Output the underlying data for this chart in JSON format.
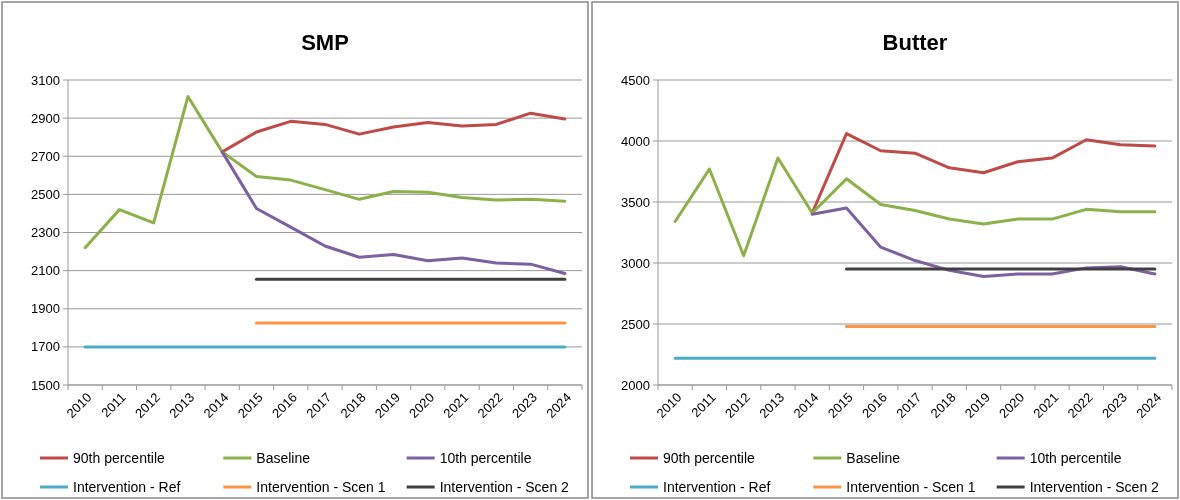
{
  "chart_data": [
    {
      "type": "line",
      "title": "SMP",
      "categories": [
        "2010",
        "2011",
        "2012",
        "2013",
        "2014",
        "2015",
        "2016",
        "2017",
        "2018",
        "2019",
        "2020",
        "2021",
        "2022",
        "2023",
        "2024"
      ],
      "ylim": [
        1500,
        3100
      ],
      "yticks": [
        1500,
        1700,
        1900,
        2100,
        2300,
        2500,
        2700,
        2900,
        3100
      ],
      "grid": "y",
      "legend": "bottom",
      "marker": "none",
      "series": [
        {
          "name": "90th percentile",
          "color": "#be4b48",
          "values": [
            null,
            null,
            null,
            null,
            2723,
            2827,
            2883,
            2867,
            2816,
            2853,
            2877,
            2859,
            2867,
            2926,
            2895
          ]
        },
        {
          "name": "Baseline",
          "color": "#8cb04a",
          "values": [
            2220,
            2420,
            2350,
            3013,
            2723,
            2594,
            2575,
            2525,
            2474,
            2515,
            2511,
            2484,
            2470,
            2474,
            2464
          ]
        },
        {
          "name": "10th percentile",
          "color": "#7d60a0",
          "values": [
            null,
            null,
            null,
            null,
            2723,
            2426,
            2328,
            2229,
            2170,
            2185,
            2152,
            2166,
            2140,
            2134,
            2085
          ]
        },
        {
          "name": "Intervention - Ref",
          "color": "#4aacc6",
          "values": [
            1700,
            1700,
            1700,
            1700,
            1700,
            1700,
            1700,
            1700,
            1700,
            1700,
            1700,
            1700,
            1700,
            1700,
            1700
          ]
        },
        {
          "name": "Intervention - Scen 1",
          "color": "#f79646",
          "values": [
            null,
            null,
            null,
            null,
            null,
            1825,
            1825,
            1825,
            1825,
            1825,
            1825,
            1825,
            1825,
            1825,
            1825
          ]
        },
        {
          "name": "Intervention - Scen 2",
          "color": "#404040",
          "values": [
            null,
            null,
            null,
            null,
            null,
            2055,
            2055,
            2055,
            2055,
            2055,
            2055,
            2055,
            2055,
            2055,
            2055
          ]
        }
      ]
    },
    {
      "type": "line",
      "title": "Butter",
      "categories": [
        "2010",
        "2011",
        "2012",
        "2013",
        "2014",
        "2015",
        "2016",
        "2017",
        "2018",
        "2019",
        "2020",
        "2021",
        "2022",
        "2023",
        "2024"
      ],
      "ylim": [
        2000,
        4500
      ],
      "yticks": [
        2000,
        2500,
        3000,
        3500,
        4000,
        4500
      ],
      "grid": "y",
      "legend": "bottom",
      "marker": "none",
      "series": [
        {
          "name": "90th percentile",
          "color": "#be4b48",
          "values": [
            null,
            null,
            null,
            null,
            3410,
            4060,
            3920,
            3900,
            3780,
            3740,
            3830,
            3860,
            4010,
            3970,
            3960
          ]
        },
        {
          "name": "Baseline",
          "color": "#8cb04a",
          "values": [
            3340,
            3770,
            3060,
            3860,
            3410,
            3690,
            3480,
            3430,
            3360,
            3320,
            3360,
            3360,
            3440,
            3420,
            3420
          ]
        },
        {
          "name": "10th percentile",
          "color": "#7d60a0",
          "values": [
            null,
            null,
            null,
            null,
            3400,
            3450,
            3130,
            3020,
            2940,
            2890,
            2910,
            2910,
            2960,
            2970,
            2910
          ]
        },
        {
          "name": "Intervention - Ref",
          "color": "#4aacc6",
          "values": [
            2220,
            2220,
            2220,
            2220,
            2220,
            2220,
            2220,
            2220,
            2220,
            2220,
            2220,
            2220,
            2220,
            2220,
            2220
          ]
        },
        {
          "name": "Intervention - Scen 1",
          "color": "#f79646",
          "values": [
            null,
            null,
            null,
            null,
            null,
            2480,
            2480,
            2480,
            2480,
            2480,
            2480,
            2480,
            2480,
            2480,
            2480
          ]
        },
        {
          "name": "Intervention - Scen 2",
          "color": "#404040",
          "values": [
            null,
            null,
            null,
            null,
            null,
            2950,
            2950,
            2950,
            2950,
            2950,
            2950,
            2950,
            2950,
            2950,
            2950
          ]
        }
      ]
    }
  ]
}
